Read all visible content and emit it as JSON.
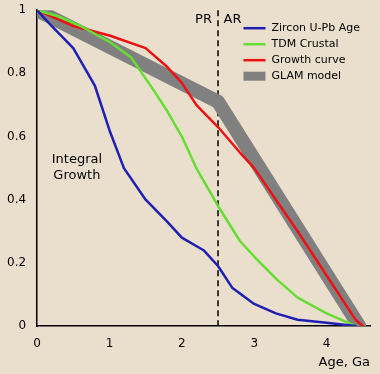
{
  "chart_data": {
    "type": "line",
    "x_label": "Age, Ga",
    "xlim": [
      0,
      4.6
    ],
    "xticks": [
      0,
      1,
      2,
      3,
      4
    ],
    "ylim": [
      0,
      1
    ],
    "yticks": [
      0,
      0.2,
      0.4,
      0.6,
      0.8,
      1
    ],
    "grid": false,
    "legend": "upper right",
    "series": [
      {
        "name": "Zircon U-Pb Age",
        "color": "#1f1fb4",
        "x": [
          0,
          0.2,
          0.5,
          0.8,
          1,
          1.2,
          1.5,
          1.8,
          2,
          2.3,
          2.5,
          2.7,
          3,
          3.3,
          3.6,
          4,
          4.4
        ],
        "values": [
          1,
          0.95,
          0.88,
          0.76,
          0.62,
          0.5,
          0.4,
          0.33,
          0.28,
          0.24,
          0.19,
          0.12,
          0.07,
          0.04,
          0.02,
          0.01,
          0
        ]
      },
      {
        "name": "TDM Crustal",
        "color": "#66dd33",
        "x": [
          0,
          0.3,
          0.6,
          1,
          1.3,
          1.6,
          1.8,
          2,
          2.2,
          2.5,
          2.8,
          3,
          3.3,
          3.6,
          4,
          4.4
        ],
        "values": [
          1,
          0.98,
          0.95,
          0.9,
          0.85,
          0.75,
          0.68,
          0.6,
          0.5,
          0.38,
          0.27,
          0.22,
          0.15,
          0.09,
          0.04,
          0
        ]
      },
      {
        "name": "Growth curve",
        "color": "#ee1111",
        "x": [
          0,
          0.3,
          0.5,
          1,
          1.5,
          1.8,
          2,
          2.2,
          2.5,
          2.8,
          3,
          3.3,
          3.6,
          4,
          4.4,
          4.5
        ],
        "values": [
          1,
          0.97,
          0.95,
          0.92,
          0.88,
          0.82,
          0.77,
          0.7,
          0.63,
          0.55,
          0.5,
          0.4,
          0.3,
          0.16,
          0.02,
          0
        ]
      },
      {
        "name": "GLAM model",
        "color": "#808080",
        "x": [
          0,
          2.5,
          4.45
        ],
        "values": [
          1,
          0.71,
          0
        ]
      }
    ],
    "vline": {
      "x": 2.5,
      "line_style": "dashed",
      "color": "#000000"
    },
    "annotations": [
      {
        "text": "PR",
        "x": 2.3,
        "y": 0.97
      },
      {
        "text": "AR",
        "x": 2.7,
        "y": 0.97
      },
      {
        "text": "Integral Growth",
        "x": 0.55,
        "y": 0.5
      }
    ]
  }
}
